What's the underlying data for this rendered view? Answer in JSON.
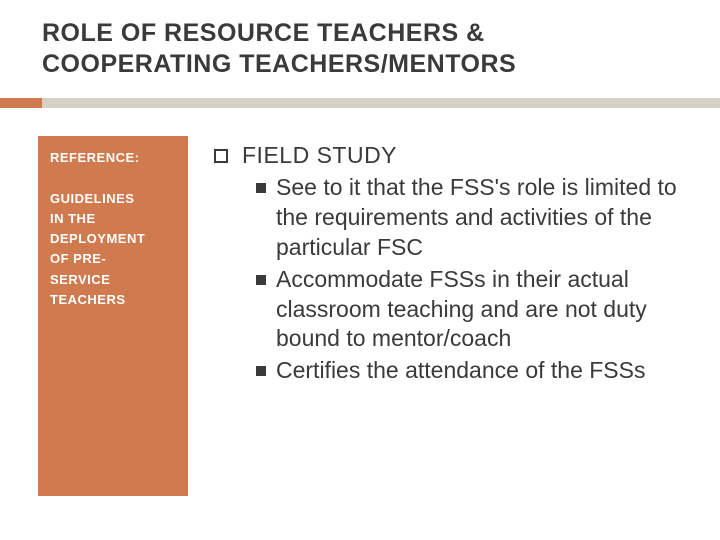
{
  "colors": {
    "background": "#ffffff",
    "text": "#3a3a3a",
    "sidebar_bg": "#cf7b4f",
    "sidebar_text": "#ffffff",
    "underline": "#d7d0c7",
    "accent": "#cf7b4f"
  },
  "title": {
    "line1": "ROLE OF RESOURCE TEACHERS &",
    "line2": "COOPERATING TEACHERS/MENTORS",
    "fontsize": 25
  },
  "sidebar": {
    "reference_label": "REFERENCE:",
    "reference_fontsize": 13,
    "guidelines_lines": [
      "GUIDELINES",
      "IN THE",
      "DEPLOYMENT",
      "OF PRE-",
      "SERVICE",
      "TEACHERS"
    ],
    "guidelines_fontsize": 13
  },
  "content": {
    "top_label": "FIELD STUDY",
    "top_fontsize": 23,
    "sub_fontsize": 23,
    "line_height": 1.3,
    "items": [
      "See to it that the FSS's role is limited to the requirements and activities of the particular FSC",
      "Accommodate FSSs in their actual classroom teaching and are not duty bound to mentor/coach",
      "Certifies the attendance of the FSSs"
    ]
  }
}
